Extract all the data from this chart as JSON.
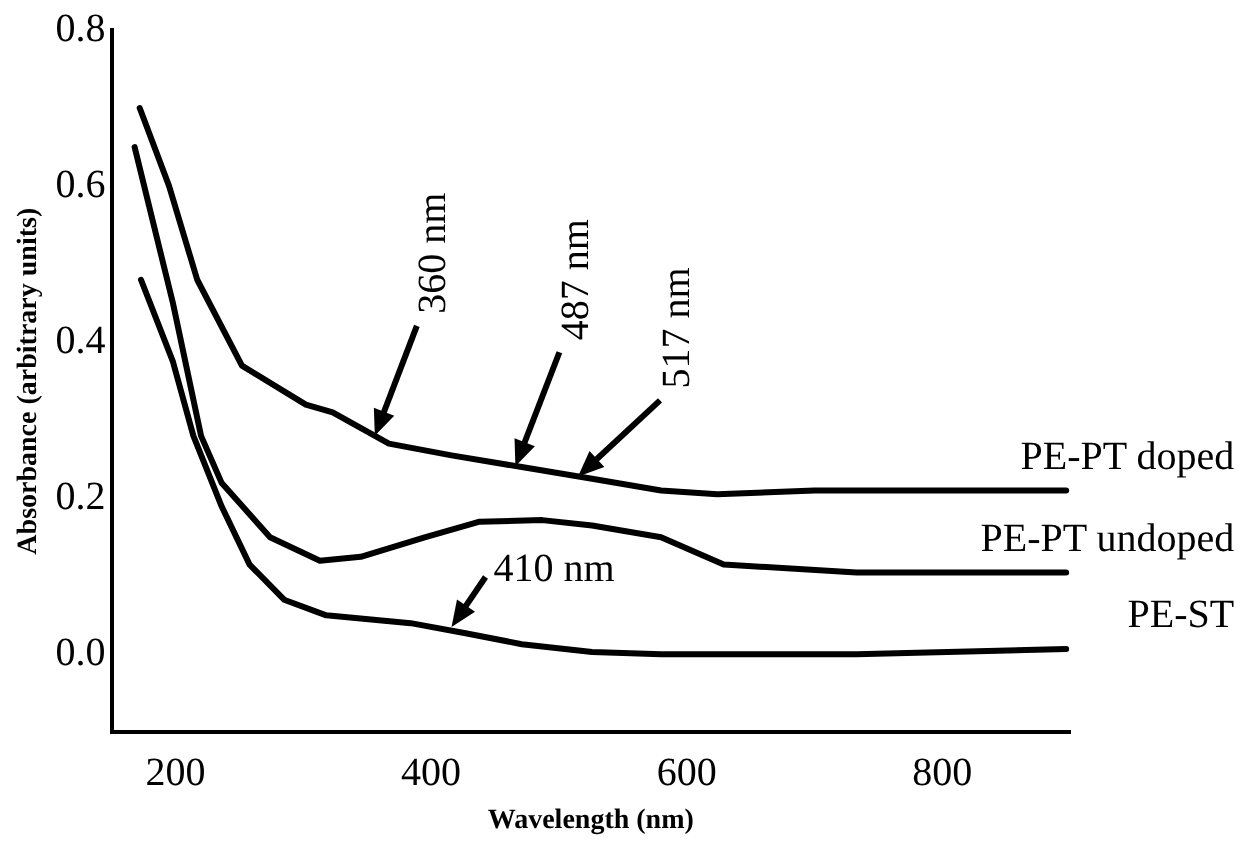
{
  "chart_data": {
    "type": "line",
    "xlabel": "Wavelength (nm)",
    "ylabel": "Absorbance (arbitrary units)",
    "xlim": [
      150,
      900
    ],
    "xticks": [
      200,
      400,
      600,
      800
    ],
    "ylim": [
      -0.1,
      0.8
    ],
    "yticks": [
      {
        "value": 0,
        "label": "0.0"
      },
      0.2,
      0.4,
      0.6,
      0.8
    ],
    "grid": false,
    "legend": false,
    "marker": "none",
    "line_style": "solid",
    "series": [
      {
        "name": "PE-PT doped",
        "color": "#000000",
        "x": [
          172,
          195,
          217,
          252,
          302,
          323,
          367,
          416,
          471,
          526,
          580,
          624,
          700,
          897
        ],
        "values": [
          0.7,
          0.6,
          0.48,
          0.37,
          0.32,
          0.31,
          0.27,
          0.255,
          0.24,
          0.225,
          0.21,
          0.205,
          0.21,
          0.21
        ]
      },
      {
        "name": "PE-PT undoped",
        "color": "#000000",
        "x": [
          168,
          198,
          220,
          236,
          274,
          313,
          345,
          395,
          438,
          487,
          526,
          580,
          629,
          733,
          897
        ],
        "values": [
          0.65,
          0.45,
          0.28,
          0.22,
          0.15,
          0.12,
          0.125,
          0.15,
          0.17,
          0.172,
          0.165,
          0.15,
          0.115,
          0.105,
          0.105
        ]
      },
      {
        "name": "PE-ST",
        "color": "#000000",
        "x": [
          173,
          198,
          214,
          236,
          258,
          285,
          318,
          384,
          427,
          471,
          526,
          580,
          624,
          733,
          897
        ],
        "values": [
          0.48,
          0.375,
          0.28,
          0.19,
          0.115,
          0.07,
          0.05,
          0.04,
          0.027,
          0.013,
          0.003,
          0.0,
          0.0,
          0.0,
          0.007
        ]
      }
    ],
    "annotations": [
      {
        "text": "360 nm",
        "x": 356,
        "y": 0.28
      },
      {
        "text": "487 nm",
        "x": 466,
        "y": 0.241
      },
      {
        "text": "517 nm",
        "x": 515,
        "y": 0.228
      },
      {
        "text": "410 nm",
        "x": 416,
        "y": 0.035
      }
    ]
  }
}
